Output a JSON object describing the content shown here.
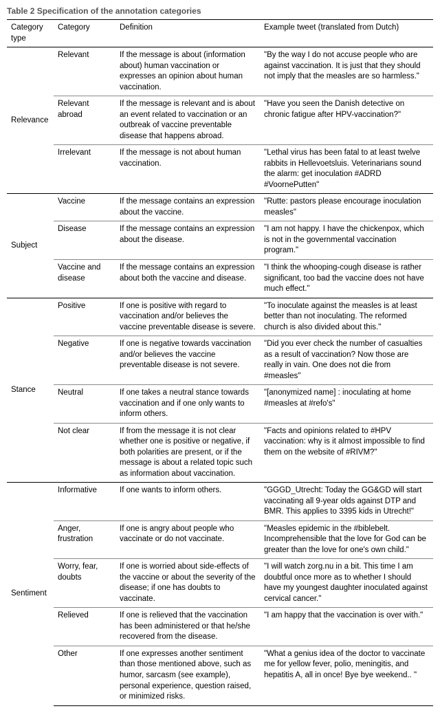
{
  "title": "Table 2  Specification of the annotation categories",
  "headers": {
    "col1": "Category type",
    "col2": "Category",
    "col3": "Definition",
    "col4": "Example tweet (translated from Dutch)"
  },
  "groups": [
    {
      "type": "Relevance",
      "rows": [
        {
          "category": "Relevant",
          "definition": "If the message is about (information about) human vaccination or expresses an opinion about human vaccination.",
          "example": "\"By the way I do not accuse people who are against vaccination. It is just that they should not imply that the measles are so harmless.\""
        },
        {
          "category": "Relevant abroad",
          "definition": "If the message is relevant and is about an event related to vaccination or an outbreak of vaccine preventable disease that happens abroad.",
          "example": "\"Have you seen the Danish detective on chronic fatigue after HPV-vaccination?\""
        },
        {
          "category": "Irrelevant",
          "definition": "If the message is not about human vaccination.",
          "example": "\"Lethal virus has been fatal to at least twelve rabbits in Hellevoetsluis. Veterinarians sound the alarm: get inoculation #ADRD #VoornePutten\""
        }
      ]
    },
    {
      "type": "Subject",
      "rows": [
        {
          "category": "Vaccine",
          "definition": "If the message contains an expression about the vaccine.",
          "example": "\"Rutte: pastors please encourage inoculation measles\""
        },
        {
          "category": "Disease",
          "definition": "If the message contains an expression about the disease.",
          "example": "\"I am not happy. I have the chickenpox, which is not in the governmental vaccination program.\""
        },
        {
          "category": "Vaccine and disease",
          "definition": "If the message contains an expression about both the vaccine and disease.",
          "example": "\"I think the whooping-cough disease is rather significant, too bad the vaccine does not have much effect.\""
        }
      ]
    },
    {
      "type": "Stance",
      "rows": [
        {
          "category": "Positive",
          "definition": "If one is positive with regard to vaccination and/or believes the vaccine preventable disease is severe.",
          "example": "\"To inoculate against the measles is at least better than not inoculating. The reformed church is also divided about this.\""
        },
        {
          "category": "Negative",
          "definition": "If one is negative towards vaccination and/or believes the vaccine preventable disease is not severe.",
          "example": "\"Did you ever check the number of casualties as a result of vaccination? Now those are really in vain. One does not die from #measles\""
        },
        {
          "category": "Neutral",
          "definition": "If one takes a neutral stance towards vaccination and if one only wants to inform others.",
          "example": "\"[anonymized name] : inoculating at home #measles at #refo's\""
        },
        {
          "category": "Not clear",
          "definition": "If from the message it is not clear whether one is positive or negative, if both polarities are present, or if the message is about a related topic such as information about vaccination.",
          "example": "\"Facts and opinions related to #HPV vaccination: why is it almost impossible to find them on the website of #RIVM?\""
        }
      ]
    },
    {
      "type": "Sentiment",
      "rows": [
        {
          "category": "Informative",
          "definition": "If one wants to inform others.",
          "example": "\"GGGD_Utrecht: Today the GG&GD will start vaccinating all 9-year olds against DTP and BMR. This applies to 3395 kids in Utrecht!\""
        },
        {
          "category": "Anger, frustration",
          "definition": "If one is angry about people who vaccinate or do not vaccinate.",
          "example": "\"Measles epidemic in the #biblebelt. Incomprehensible that the love for God can be greater than the love for one's own child.\""
        },
        {
          "category": "Worry, fear, doubts",
          "definition": "If one is worried about side-effects of the vaccine or about the severity of the disease; if one has doubts to vaccinate.",
          "example": "\"I will watch zorg.nu in a bit. This time I am doubtful once more as to whether I should have my youngest daughter inoculated against cervical cancer.\""
        },
        {
          "category": "Relieved",
          "definition": "If one is relieved that the vaccination has been administered or that he/she recovered from the disease.",
          "example": "\"I am happy that the vaccination is over with.\""
        },
        {
          "category": "Other",
          "definition": "If one expresses another sentiment than those mentioned above, such as humor, sarcasm (see example), personal experience, question raised, or minimized risks.",
          "example": "\"What a genius idea of the doctor to vaccinate me for yellow fever, polio, meningitis, and hepatitis A, all in once! Bye bye weekend.. \""
        }
      ]
    }
  ]
}
